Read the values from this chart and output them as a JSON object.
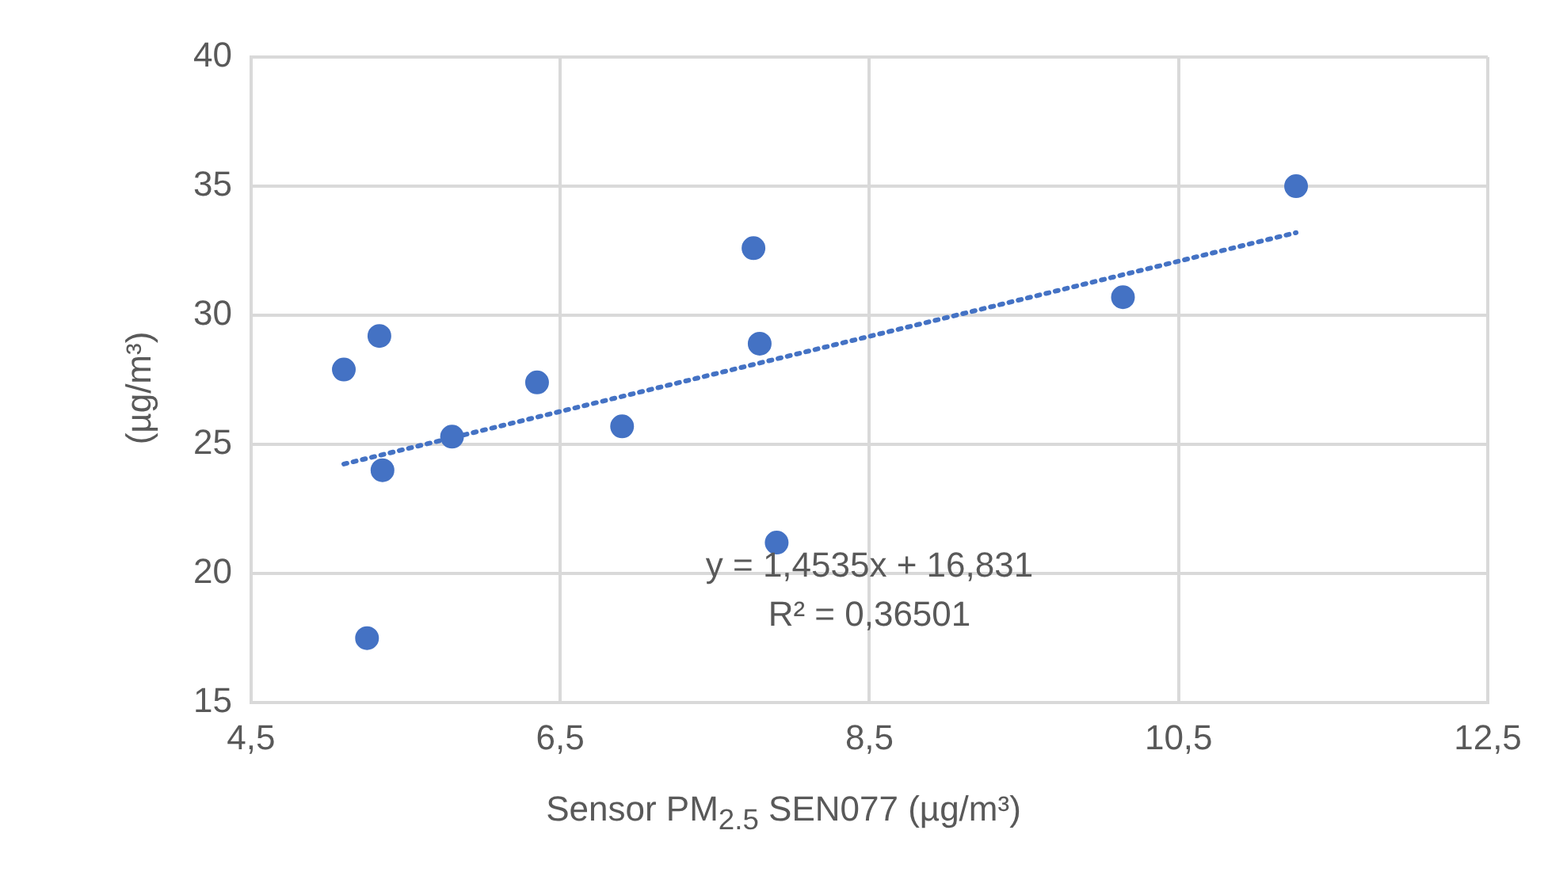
{
  "chart_data": {
    "type": "scatter",
    "xlabel": "Sensor PM$_{2.5}$ SEN077 (µg/m³)",
    "ylabel": "(µg/m³)",
    "xlim": [
      4.5,
      12.5
    ],
    "xticks": [
      {
        "value": 4.5,
        "label": "4,5"
      },
      {
        "value": 6.5,
        "label": "6,5"
      },
      {
        "value": 8.5,
        "label": "8,5"
      },
      {
        "value": 10.5,
        "label": "10,5"
      },
      {
        "value": 12.5,
        "label": "12,5"
      }
    ],
    "ylim": [
      15,
      40
    ],
    "yticks": [
      15,
      20,
      25,
      30,
      35,
      40
    ],
    "grid": true,
    "marker": "circle",
    "series": [
      {
        "color": "#4472c4",
        "x": [
          5.1,
          5.33,
          5.35,
          5.25,
          5.8,
          6.35,
          6.9,
          7.75,
          7.79,
          7.9,
          10.14,
          11.26
        ],
        "values": [
          27.9,
          29.2,
          24.0,
          17.5,
          25.3,
          27.4,
          25.7,
          32.6,
          28.9,
          21.2,
          30.7,
          35.0
        ]
      },
      {
        "type": "line",
        "color": "#4472c4",
        "line_style": "dotted",
        "marker": "none",
        "x": [
          5.1,
          11.26
        ],
        "values": [
          24.24,
          33.2
        ]
      }
    ],
    "annotations": [
      "y = 1,4535x + 16,831",
      "R² = 0,36501"
    ]
  }
}
